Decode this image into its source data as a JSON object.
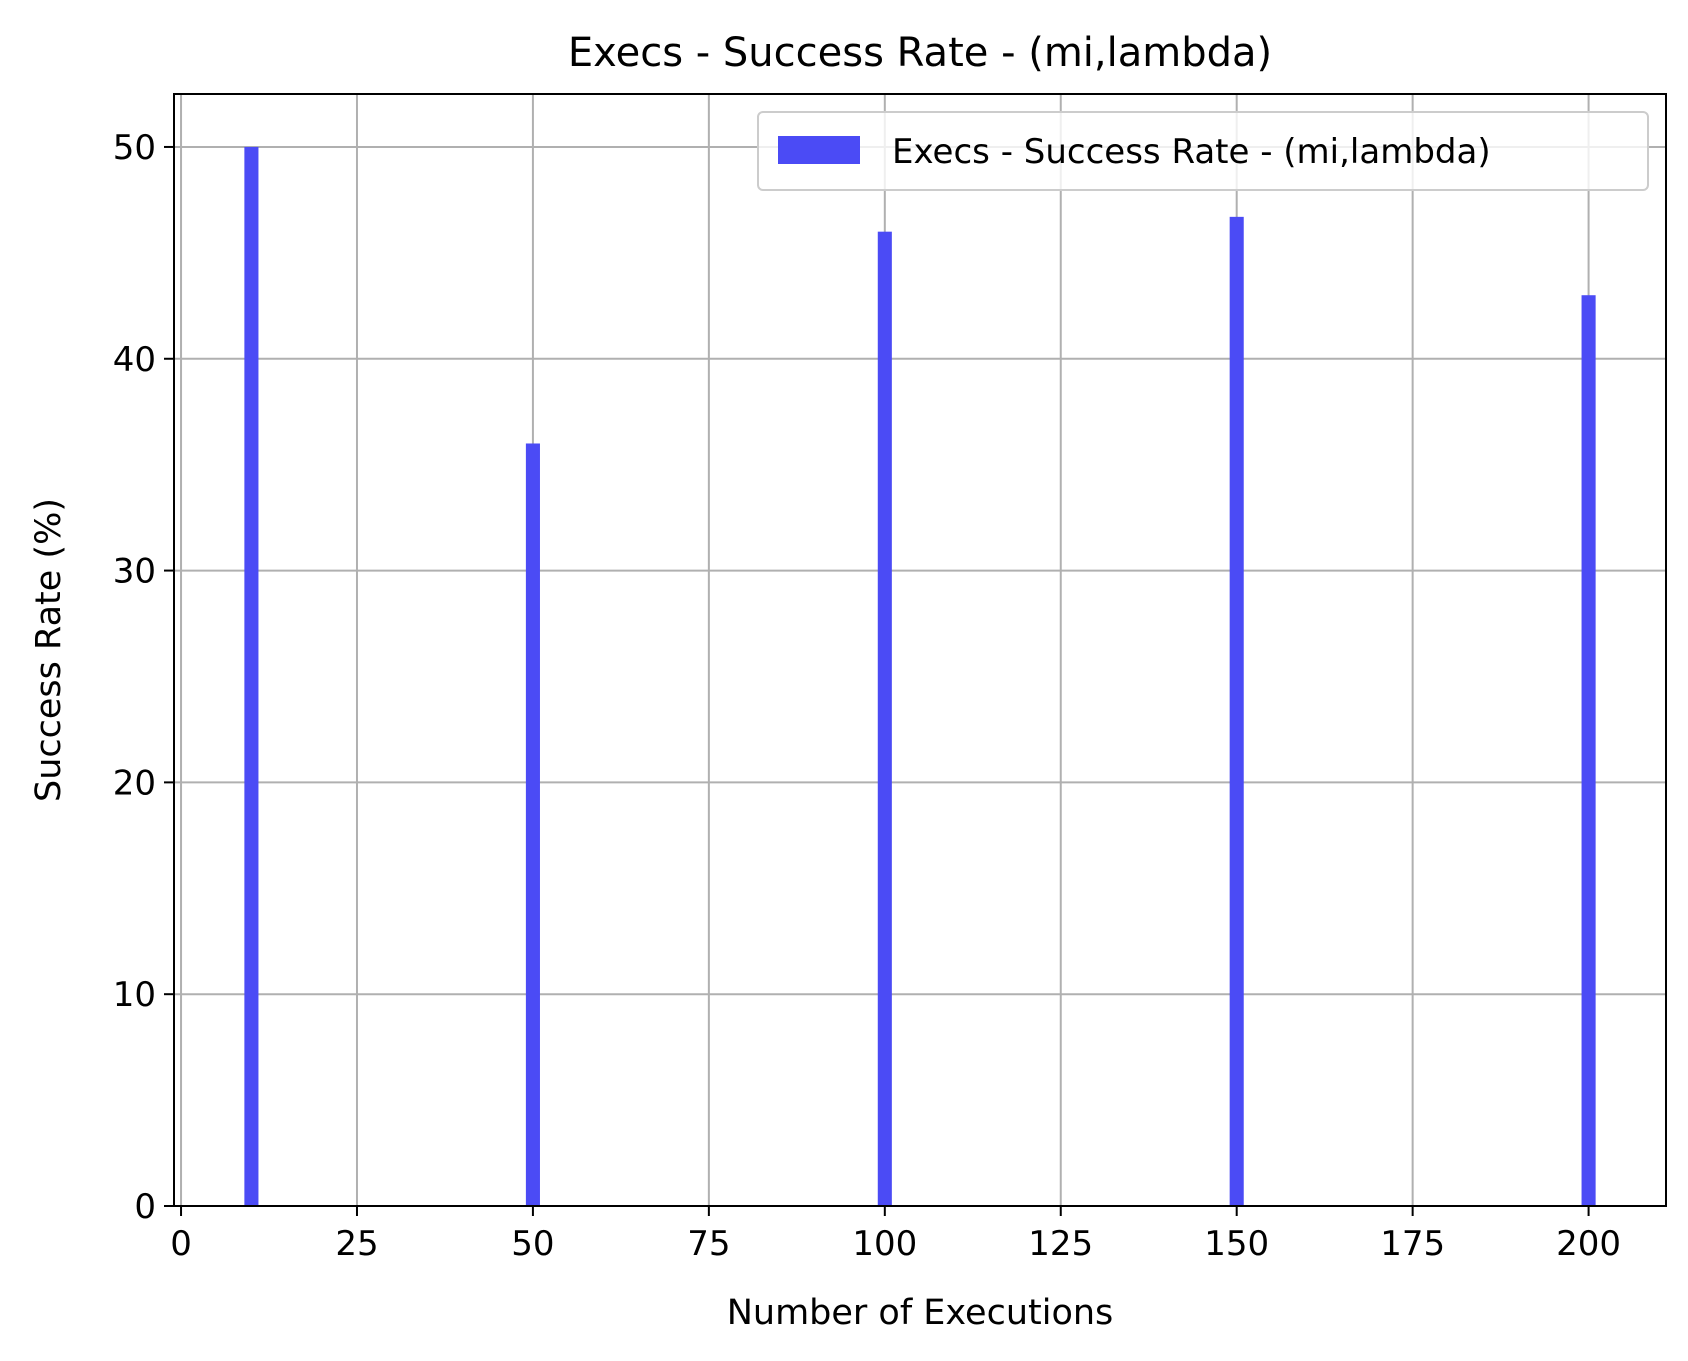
{
  "chart_data": {
    "type": "bar",
    "title": "Execs - Success Rate - (mi,lambda)",
    "xlabel": "Number of Executions",
    "ylabel": "Success Rate (%)",
    "x": [
      10,
      50,
      100,
      150,
      200
    ],
    "series": [
      {
        "name": "Execs - Success Rate - (mi,lambda)",
        "values": [
          50,
          36,
          46,
          46.7,
          43
        ],
        "color": "#4b4bf5"
      }
    ],
    "bar_width": 2,
    "xlim": [
      -1,
      211
    ],
    "ylim": [
      0,
      52.5
    ],
    "xticks": [
      0,
      25,
      50,
      75,
      100,
      125,
      150,
      175,
      200
    ],
    "xtick_labels": [
      "0",
      "25",
      "50",
      "75",
      "100",
      "125",
      "150",
      "175",
      "200"
    ],
    "yticks": [
      0,
      10,
      20,
      30,
      40,
      50
    ],
    "ytick_labels": [
      "0",
      "10",
      "20",
      "30",
      "40",
      "50"
    ],
    "grid": true,
    "legend_position": "top-right",
    "colors": {
      "grid": "#b0b0b0",
      "axis": "#000000",
      "legend_border": "#cccccc"
    }
  }
}
